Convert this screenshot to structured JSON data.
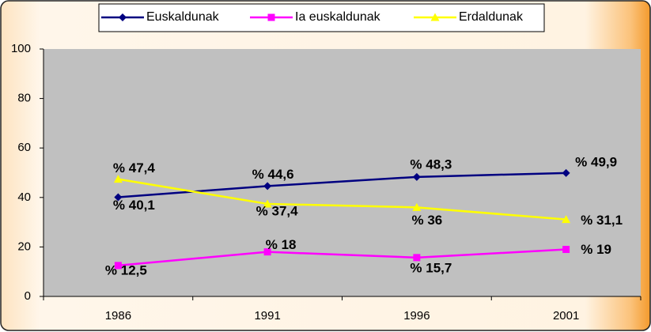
{
  "chart_data": {
    "type": "line",
    "categories": [
      "1986",
      "1991",
      "1996",
      "2001"
    ],
    "series": [
      {
        "name": "Euskaldunak",
        "color": "#000080",
        "marker": "diamond",
        "values": [
          40.1,
          44.6,
          48.3,
          49.9
        ],
        "value_labels": [
          "% 40,1",
          "% 44,6",
          "% 48,3",
          "% 49,9"
        ]
      },
      {
        "name": "Ia euskaldunak",
        "color": "#ff00ff",
        "marker": "square",
        "values": [
          12.5,
          18,
          15.7,
          19
        ],
        "value_labels": [
          "% 12,5",
          "% 18",
          "% 15,7",
          "% 19"
        ]
      },
      {
        "name": "Erdaldunak",
        "color": "#ffff00",
        "marker": "triangle",
        "values": [
          47.4,
          37.4,
          36,
          31.1
        ],
        "value_labels": [
          "% 47,4",
          "% 37,4",
          "% 36",
          "% 31,1"
        ]
      }
    ],
    "ylim": [
      0,
      100
    ],
    "yticks": [
      0,
      20,
      40,
      60,
      80,
      100
    ],
    "legend": "top"
  }
}
